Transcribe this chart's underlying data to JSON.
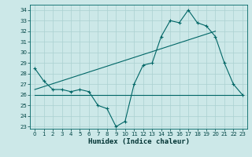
{
  "xlabel": "Humidex (Indice chaleur)",
  "bg_color": "#cce8e8",
  "grid_color": "#aad0d0",
  "line_color": "#006666",
  "xlim": [
    -0.5,
    23.5
  ],
  "ylim": [
    22.8,
    34.5
  ],
  "yticks": [
    23,
    24,
    25,
    26,
    27,
    28,
    29,
    30,
    31,
    32,
    33,
    34
  ],
  "xticks": [
    0,
    1,
    2,
    3,
    4,
    5,
    6,
    7,
    8,
    9,
    10,
    11,
    12,
    13,
    14,
    15,
    16,
    17,
    18,
    19,
    20,
    21,
    22,
    23
  ],
  "series1_x": [
    0,
    1,
    2,
    3,
    4,
    5,
    6,
    7,
    8,
    9,
    10,
    11,
    12,
    13,
    14,
    15,
    16,
    17,
    18,
    19,
    20,
    21,
    22,
    23
  ],
  "series1_y": [
    28.5,
    27.3,
    26.5,
    26.5,
    26.3,
    26.5,
    26.3,
    25.0,
    24.7,
    23.0,
    23.5,
    27.0,
    28.8,
    29.0,
    31.5,
    33.0,
    32.8,
    34.0,
    32.8,
    32.5,
    31.5,
    29.0,
    27.0,
    26.0
  ],
  "series2_x": [
    0,
    10,
    23
  ],
  "series2_y": [
    26.0,
    26.0,
    26.0
  ],
  "series3_x": [
    0,
    20
  ],
  "series3_y": [
    26.5,
    32.0
  ]
}
